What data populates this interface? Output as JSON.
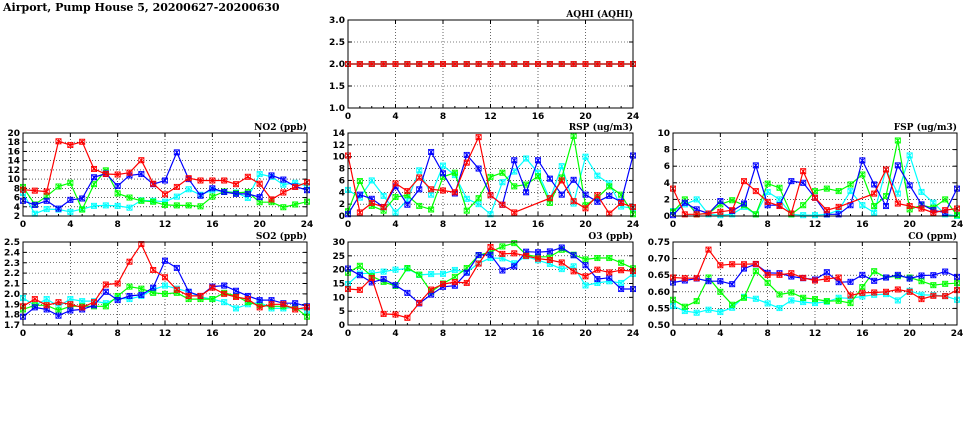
{
  "title": "Airport, Pump House 5, 20200627-20200630",
  "series_colors": {
    "s1": "#ff0000",
    "s2": "#0000ff",
    "s3": "#00ff00",
    "s4": "#00ffff"
  },
  "chart_data": [
    {
      "type": "line",
      "id": "aqhi",
      "title": "AQHI (AQHI)",
      "xlim": [
        0,
        24
      ],
      "xticks": [
        0,
        4,
        8,
        12,
        16,
        20,
        24
      ],
      "ylim": [
        1,
        3
      ],
      "ystep": 0.5,
      "ydec": 1,
      "grid": true,
      "series": [
        {
          "name": "s2",
          "values": [
            2,
            2,
            2,
            2,
            2,
            2,
            2,
            2,
            2,
            2,
            2,
            2,
            2,
            2,
            2,
            2,
            2,
            2,
            2,
            2,
            2,
            2,
            2,
            2,
            2
          ]
        },
        {
          "name": "s3",
          "values": [
            2,
            2,
            2,
            2,
            2,
            2,
            2,
            2,
            2,
            2,
            2,
            2,
            2,
            2,
            2,
            2,
            2,
            2,
            2,
            2,
            2,
            2,
            2,
            2,
            2
          ]
        },
        {
          "name": "s4",
          "values": [
            2,
            2,
            2,
            2,
            2,
            2,
            2,
            2,
            2,
            2,
            2,
            2,
            2,
            2,
            2,
            2,
            2,
            2,
            2,
            2,
            2,
            2,
            2,
            2,
            2
          ]
        },
        {
          "name": "s1",
          "values": [
            2,
            2,
            2,
            2,
            2,
            2,
            2,
            2,
            2,
            2,
            2,
            2,
            2,
            2,
            2,
            2,
            2,
            2,
            2,
            2,
            2,
            2,
            2,
            2,
            2
          ]
        }
      ]
    },
    {
      "type": "line",
      "id": "no2",
      "title": "NO2 (ppb)",
      "xlim": [
        0,
        24
      ],
      "xticks": [
        0,
        4,
        8,
        12,
        16,
        20,
        24
      ],
      "ylim": [
        2,
        20
      ],
      "ystep": 2,
      "ydec": 0,
      "grid": true,
      "series": [
        {
          "name": "s4",
          "values": [
            7,
            2.5,
            3.5,
            3.4,
            2.9,
            3.5,
            4.2,
            4.3,
            4.2,
            3.8,
            5.4,
            5.3,
            5.1,
            6.2,
            7.8,
            6.6,
            7.6,
            7.3,
            7.1,
            5.9,
            11.1,
            10.5,
            8.8,
            9.2,
            8.5
          ]
        },
        {
          "name": "s3",
          "values": [
            8.3,
            4.5,
            6.3,
            8.4,
            9.2,
            3.4,
            8.9,
            11.9,
            6.9,
            6,
            5.3,
            5.1,
            4.4,
            4.3,
            4.3,
            4.1,
            6.2,
            7.3,
            7,
            7.2,
            5,
            5,
            3.9,
            4.5,
            5.1
          ]
        },
        {
          "name": "s2",
          "values": [
            5.3,
            4.4,
            5.3,
            3.6,
            5.5,
            5.8,
            10.4,
            11.2,
            8.5,
            10.8,
            11.1,
            8.9,
            9.7,
            15.8,
            10,
            6.4,
            8,
            7.2,
            6.8,
            6.8,
            6.1,
            10.8,
            9.9,
            8.4,
            7.6
          ]
        },
        {
          "name": "s1",
          "values": [
            7.7,
            7.5,
            7.3,
            18.2,
            17.4,
            18.1,
            12.2,
            11.1,
            11,
            11.4,
            14.1,
            9,
            6.7,
            8.3,
            10.2,
            9.7,
            9.7,
            9.7,
            8.9,
            10.5,
            9,
            5.6,
            7.1,
            8.3,
            9.3
          ]
        }
      ]
    },
    {
      "type": "line",
      "id": "rsp",
      "title": "RSP (ug/m3)",
      "xlim": [
        0,
        24
      ],
      "xticks": [
        0,
        4,
        8,
        12,
        16,
        20,
        24
      ],
      "ylim": [
        0,
        14
      ],
      "ystep": 2,
      "ydec": 0,
      "grid": true,
      "series": [
        {
          "name": "s4",
          "values": [
            4.4,
            3.1,
            6,
            3.4,
            0.6,
            2.7,
            7.7,
            3.6,
            8.5,
            6.9,
            2.9,
            2,
            0.3,
            5.7,
            7.5,
            9.7,
            7.3,
            2.8,
            8.4,
            2.1,
            10,
            6.8,
            5.5,
            1.6,
            1.3
          ]
        },
        {
          "name": "s3",
          "values": [
            0.8,
            5.9,
            1.7,
            0.9,
            3.2,
            3.5,
            1.7,
            1.1,
            6.6,
            7.3,
            0.9,
            3,
            6.6,
            7.3,
            5,
            5.3,
            6.7,
            2.2,
            6.5,
            13.5,
            1.8,
            3.1,
            5,
            3.6,
            0.3
          ]
        },
        {
          "name": "s2",
          "values": [
            0.3,
            3.6,
            2.9,
            1.5,
            5,
            1.9,
            4.5,
            10.8,
            7.2,
            3.8,
            10.3,
            8,
            3.5,
            1.9,
            9.4,
            4,
            9.4,
            6.3,
            3.6,
            6.1,
            3.6,
            2.4,
            3.4,
            2.4,
            10.2
          ]
        },
        {
          "name": "s1",
          "values": [
            10.2,
            0.6,
            2.2,
            1.5,
            5.5,
            4.2,
            6.5,
            4.5,
            4.3,
            4,
            9,
            13.3,
            3.5,
            1.9,
            0.6,
            null,
            null,
            3,
            6,
            2.5,
            1.3,
            3.5,
            0.4,
            2.2,
            1.5
          ]
        }
      ]
    },
    {
      "type": "line",
      "id": "fsp",
      "title": "FSP (ug/m3)",
      "xlim": [
        0,
        24
      ],
      "xticks": [
        0,
        4,
        8,
        12,
        16,
        20,
        24
      ],
      "ylim": [
        0,
        10
      ],
      "ystep": 2,
      "ydec": 0,
      "grid": true,
      "series": [
        {
          "name": "s4",
          "values": [
            0.6,
            1.4,
            2,
            0.2,
            0.1,
            0.2,
            1.1,
            0.2,
            2.9,
            2,
            0.2,
            0.1,
            0.1,
            0.2,
            0.7,
            3,
            1.3,
            0.4,
            5.6,
            2.7,
            7.3,
            2.9,
            1.6,
            0.2,
            0
          ]
        },
        {
          "name": "s3",
          "values": [
            0.5,
            2,
            0.2,
            0.3,
            1.4,
            1.9,
            1.3,
            0.2,
            3.9,
            3.4,
            0.2,
            1.3,
            3,
            3.3,
            3,
            3.8,
            5,
            1.2,
            2.4,
            9.1,
            0.8,
            1.3,
            1,
            2,
            0.1
          ]
        },
        {
          "name": "s2",
          "values": [
            0.1,
            1.6,
            0.8,
            0.3,
            1.8,
            0.6,
            1.5,
            6.1,
            1.3,
            1.3,
            4.2,
            4,
            2.2,
            0.2,
            0.2,
            1.3,
            6.7,
            3.8,
            1.2,
            6.1,
            3.7,
            1.4,
            0.7,
            0.4,
            3.3
          ]
        },
        {
          "name": "s1",
          "values": [
            3.3,
            0.2,
            0.2,
            0.3,
            0.5,
            0.7,
            4.2,
            3,
            1.7,
            1.2,
            0.3,
            5.4,
            2.2,
            0.7,
            1.1,
            null,
            null,
            2.7,
            5.6,
            1.5,
            1.2,
            0.9,
            0.4,
            0.7,
            0.9
          ]
        }
      ]
    },
    {
      "type": "line",
      "id": "so2",
      "title": "SO2 (ppb)",
      "xlim": [
        0,
        24
      ],
      "xticks": [
        0,
        4,
        8,
        12,
        16,
        20,
        24
      ],
      "ylim": [
        1.7,
        2.5
      ],
      "ystep": 0.1,
      "ydec": 1,
      "grid": true,
      "series": [
        {
          "name": "s4",
          "values": [
            1.96,
            1.89,
            1.95,
            1.88,
            1.95,
            1.93,
            1.93,
            1.91,
            1.96,
            1.95,
            1.98,
            2.04,
            2.08,
            2.05,
            2.02,
            1.97,
            1.95,
            1.92,
            1.86,
            1.9,
            1.92,
            1.86,
            1.86,
            1.87,
            1.84
          ]
        },
        {
          "name": "s3",
          "values": [
            1.85,
            1.89,
            1.89,
            1.84,
            1.88,
            1.88,
            1.88,
            1.88,
            1.98,
            2.07,
            2.05,
            2.01,
            2,
            2.01,
            1.95,
            1.95,
            1.95,
            2.01,
            1.98,
            1.92,
            1.89,
            1.88,
            1.88,
            1.87,
            1.78
          ]
        },
        {
          "name": "s2",
          "values": [
            1.78,
            1.87,
            1.85,
            1.79,
            1.84,
            1.85,
            1.89,
            2.02,
            1.94,
            1.98,
            1.99,
            2.06,
            2.32,
            2.25,
            2.02,
            1.98,
            2.07,
            2.08,
            2.03,
            1.98,
            1.94,
            1.94,
            1.91,
            1.91,
            1.88
          ]
        },
        {
          "name": "s1",
          "values": [
            1.88,
            1.95,
            1.89,
            1.92,
            1.9,
            1.87,
            1.92,
            2.09,
            2.1,
            2.31,
            2.48,
            2.23,
            2.16,
            2.04,
            1.98,
            1.98,
            2.06,
            2,
            1.97,
            1.95,
            1.87,
            1.9,
            1.9,
            1.85,
            1.87
          ]
        }
      ]
    },
    {
      "type": "line",
      "id": "o3",
      "title": "O3 (ppb)",
      "xlim": [
        0,
        24
      ],
      "xticks": [
        0,
        4,
        8,
        12,
        16,
        20,
        24
      ],
      "ylim": [
        0,
        30
      ],
      "ystep": 5,
      "ydec": 0,
      "grid": true,
      "series": [
        {
          "name": "s4",
          "values": [
            14.8,
            18.6,
            18.7,
            19.3,
            20,
            20.4,
            18.1,
            18.4,
            18.5,
            19.9,
            19.1,
            22.3,
            24.2,
            24.1,
            22.3,
            24.8,
            23.4,
            22.1,
            20.2,
            21.2,
            14.3,
            15.2,
            15.8,
            15.2,
            18.5
          ]
        },
        {
          "name": "s3",
          "values": [
            18.9,
            21.4,
            17.6,
            15.6,
            14.1,
            20.6,
            18.2,
            12,
            15,
            17.4,
            20.6,
            25.2,
            26.4,
            28.4,
            29.6,
            25.4,
            24.6,
            24.7,
            27.2,
            25.4,
            23.7,
            24.2,
            24.2,
            22.5,
            20.5
          ]
        },
        {
          "name": "s2",
          "values": [
            20.4,
            18,
            15.4,
            16.6,
            14.4,
            11.6,
            7.8,
            11,
            13.8,
            14.2,
            18.9,
            25.3,
            25.4,
            19.7,
            21.2,
            26.5,
            26.3,
            26.6,
            28,
            25.2,
            21.6,
            16.6,
            17.1,
            13,
            13
          ]
        },
        {
          "name": "s1",
          "values": [
            13,
            12.7,
            17,
            4,
            3.8,
            2.6,
            8,
            12.8,
            14.8,
            15.5,
            15.2,
            22.2,
            28.2,
            25.7,
            25.9,
            25,
            24,
            23.5,
            22.6,
            19.4,
            17.6,
            20,
            19,
            19.8,
            19.5
          ]
        }
      ]
    },
    {
      "type": "line",
      "id": "co",
      "title": "CO (ppm)",
      "xlim": [
        0,
        24
      ],
      "xticks": [
        0,
        4,
        8,
        12,
        16,
        20,
        24
      ],
      "ylim": [
        0.5,
        0.75
      ],
      "ystep": 0.05,
      "ydec": 2,
      "grid": true,
      "series": [
        {
          "name": "s4",
          "values": [
            0.557,
            0.542,
            0.537,
            0.546,
            0.539,
            0.552,
            0.585,
            0.579,
            0.565,
            0.551,
            0.574,
            0.569,
            0.566,
            0.57,
            0.582,
            0.58,
            0.586,
            0.591,
            0.593,
            0.574,
            0.603,
            0.591,
            0.59,
            0.587,
            0.576
          ]
        },
        {
          "name": "s3",
          "values": [
            0.576,
            0.555,
            0.572,
            0.643,
            0.6,
            0.561,
            0.582,
            0.662,
            0.627,
            0.592,
            0.598,
            0.582,
            0.578,
            0.572,
            0.573,
            0.566,
            0.614,
            0.662,
            0.643,
            0.647,
            0.643,
            0.632,
            0.62,
            0.624,
            0.626
          ]
        },
        {
          "name": "s2",
          "values": [
            0.628,
            0.634,
            0.64,
            0.632,
            0.632,
            0.623,
            0.67,
            0.683,
            0.657,
            0.656,
            0.646,
            0.641,
            0.637,
            0.659,
            0.629,
            0.63,
            0.651,
            0.633,
            0.643,
            0.651,
            0.64,
            0.649,
            0.65,
            0.661,
            0.645
          ]
        },
        {
          "name": "s1",
          "values": [
            0.643,
            0.641,
            0.641,
            0.727,
            0.68,
            0.683,
            0.683,
            0.684,
            0.651,
            0.651,
            0.656,
            0.642,
            0.634,
            0.639,
            0.643,
            0.589,
            0.597,
            0.598,
            0.6,
            0.607,
            0.6,
            0.578,
            0.588,
            0.587,
            0.605
          ]
        }
      ]
    }
  ]
}
